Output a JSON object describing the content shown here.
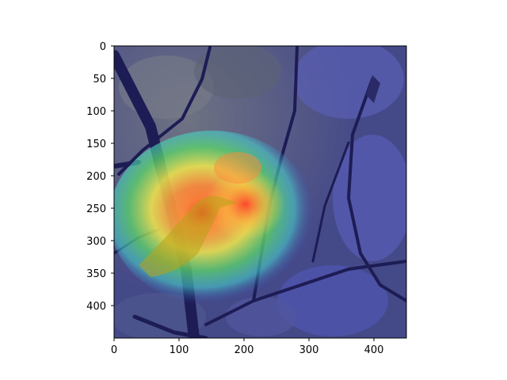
{
  "figure": {
    "background": "#ffffff",
    "image_description_hidden": true
  },
  "axes": {
    "x_ticks": [
      "0",
      "100",
      "200",
      "300",
      "400"
    ],
    "y_ticks": [
      "0",
      "50",
      "100",
      "150",
      "200",
      "250",
      "300",
      "350",
      "400"
    ],
    "x_range": [
      0,
      450
    ],
    "y_range": [
      0,
      450
    ]
  },
  "colors": {
    "overlay_blue": "#3a3fb0",
    "heat_red": "#ff3a2a",
    "heat_yellow": "#f3e84a",
    "heat_green": "#56d36a",
    "heat_cyan": "#4ad9d2",
    "branch": "#1d1c55"
  }
}
